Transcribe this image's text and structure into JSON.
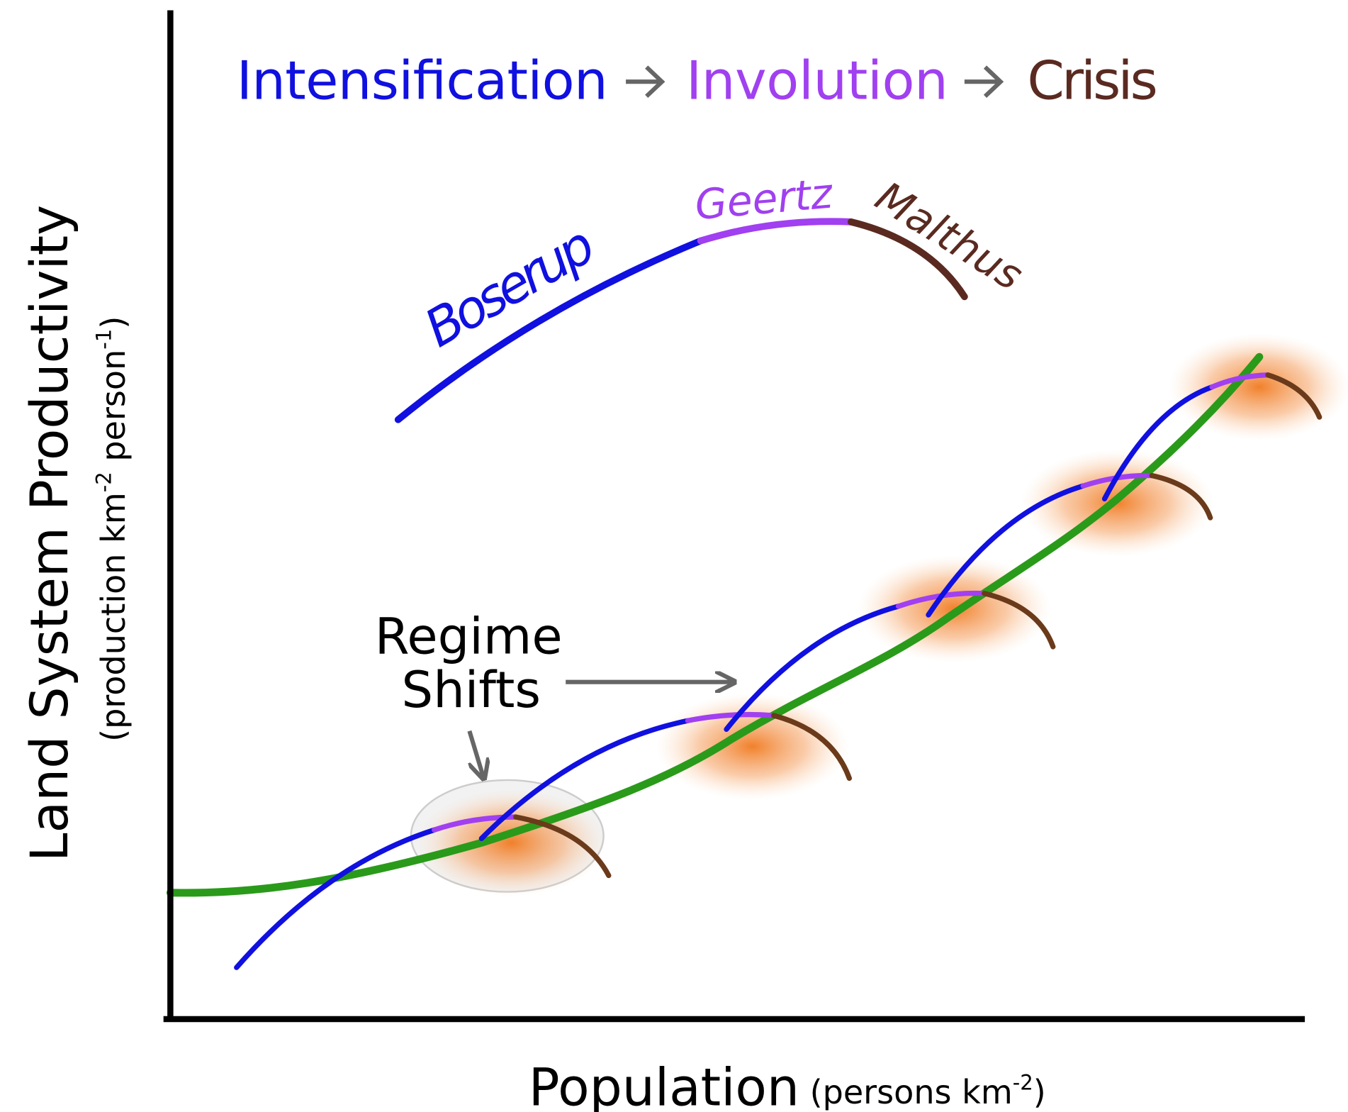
{
  "title": {
    "stage1": "Intensification",
    "stage2": "Involution",
    "stage3": "Crisis"
  },
  "curve_labels": {
    "boserup": "Boserup",
    "geertz": "Geertz",
    "malthus": "Malthus"
  },
  "annotation": {
    "line1": "Regime",
    "line2": "Shifts"
  },
  "y_axis": {
    "label": "Land System Productivity",
    "unit": [
      "(production km",
      "-2",
      " person",
      "-1",
      ")"
    ]
  },
  "x_axis": {
    "label": "Population",
    "unit": [
      "(persons km",
      "-2",
      ")"
    ]
  }
}
